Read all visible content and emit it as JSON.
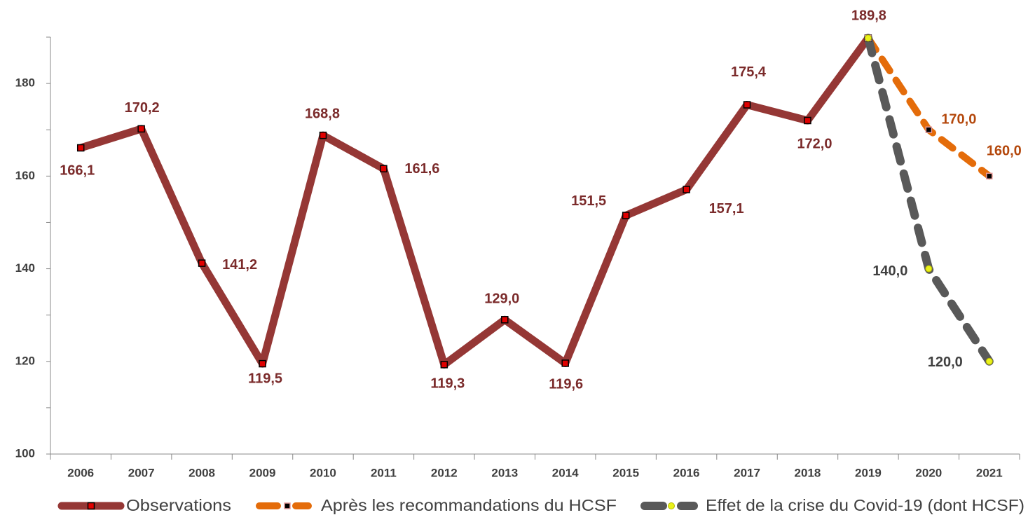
{
  "chart_data": {
    "type": "line",
    "categories": [
      "2006",
      "2007",
      "2008",
      "2009",
      "2010",
      "2011",
      "2012",
      "2013",
      "2014",
      "2015",
      "2016",
      "2017",
      "2018",
      "2019",
      "2020",
      "2021"
    ],
    "series": [
      {
        "name": "Observations",
        "color": "#953735",
        "label_color": "#7b2b2b",
        "values": [
          166.1,
          170.2,
          141.2,
          119.5,
          168.8,
          161.6,
          119.3,
          129.0,
          119.6,
          151.5,
          157.1,
          175.4,
          172.0,
          189.8,
          null,
          null
        ],
        "value_labels": [
          "166,1",
          "170,2",
          "141,2",
          "119,5",
          "168,8",
          "161,6",
          "119,3",
          "129,0",
          "119,6",
          "151,5",
          "157,1",
          "175,4",
          "172,0",
          "189,8",
          null,
          null
        ]
      },
      {
        "name": "Après les recommandations du HCSF",
        "color": "#e46c0a",
        "label_color": "#b4480c",
        "values": [
          null,
          null,
          null,
          null,
          null,
          null,
          null,
          null,
          null,
          null,
          null,
          null,
          null,
          189.8,
          170.0,
          160.0
        ],
        "value_labels": [
          null,
          null,
          null,
          null,
          null,
          null,
          null,
          null,
          null,
          null,
          null,
          null,
          null,
          null,
          "170,0",
          "160,0"
        ]
      },
      {
        "name": "Effet de la crise du Covid-19 (dont HCSF)",
        "color": "#595959",
        "label_color": "#404040",
        "values": [
          null,
          null,
          null,
          null,
          null,
          null,
          null,
          null,
          null,
          null,
          null,
          null,
          null,
          189.8,
          140.0,
          120.0
        ],
        "value_labels": [
          null,
          null,
          null,
          null,
          null,
          null,
          null,
          null,
          null,
          null,
          null,
          null,
          null,
          null,
          "140,0",
          "120,0"
        ]
      }
    ],
    "ylim": [
      100,
      190
    ],
    "yticks": [
      100,
      120,
      140,
      160,
      180
    ],
    "minor_yticks": [
      110,
      130,
      150,
      170,
      190
    ],
    "legend": "bottom"
  }
}
